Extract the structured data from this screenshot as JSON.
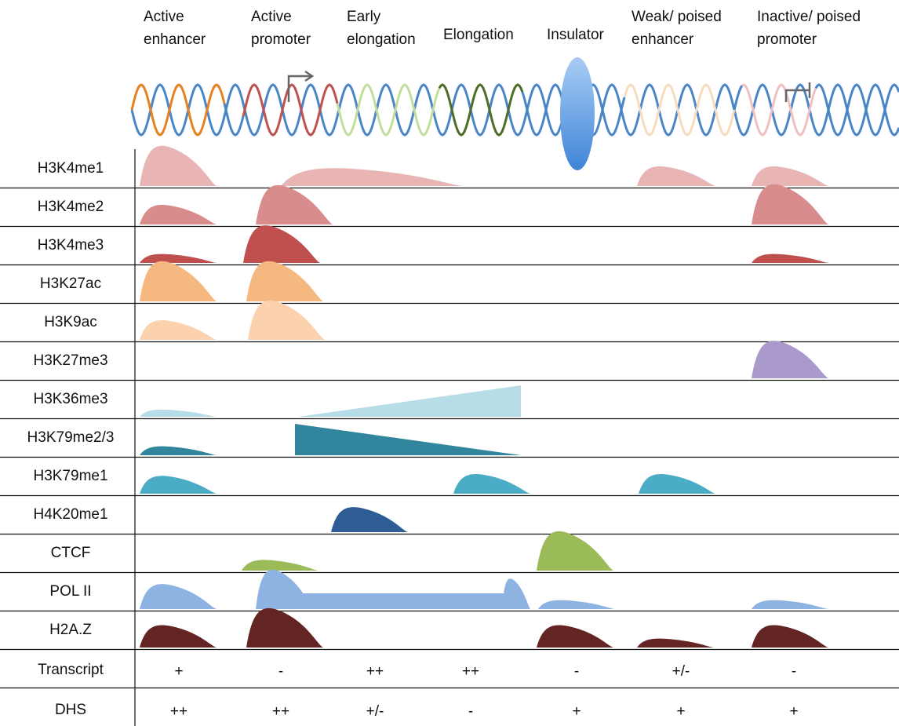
{
  "columns": [
    {
      "lines": [
        "Active",
        "enhancer"
      ]
    },
    {
      "lines": [
        "Active",
        "promoter"
      ]
    },
    {
      "lines": [
        "Early",
        "elongation"
      ]
    },
    {
      "lines": [
        "Elongation"
      ]
    },
    {
      "lines": [
        "Insulator"
      ]
    },
    {
      "lines": [
        "Weak/ poised",
        "enhancer"
      ]
    },
    {
      "lines": [
        "Inactive/ poised",
        "promoter"
      ]
    }
  ],
  "rows": [
    "H3K4me1",
    "H3K4me2",
    "H3K4me3",
    "H3K27ac",
    "H3K9ac",
    "H3K27me3",
    "H3K36me3",
    "H3K79me2/3",
    "H3K79me1",
    "H4K20me1",
    "CTCF",
    "POL II",
    "H2A.Z"
  ],
  "transcript": {
    "label": "Transcript",
    "values": [
      "+",
      "-",
      "++",
      "++",
      "-",
      "+/-",
      "-"
    ]
  },
  "dhs": {
    "label": "DHS",
    "values": [
      "++",
      "++",
      "+/-",
      "-",
      "+",
      "+",
      "+"
    ]
  }
}
